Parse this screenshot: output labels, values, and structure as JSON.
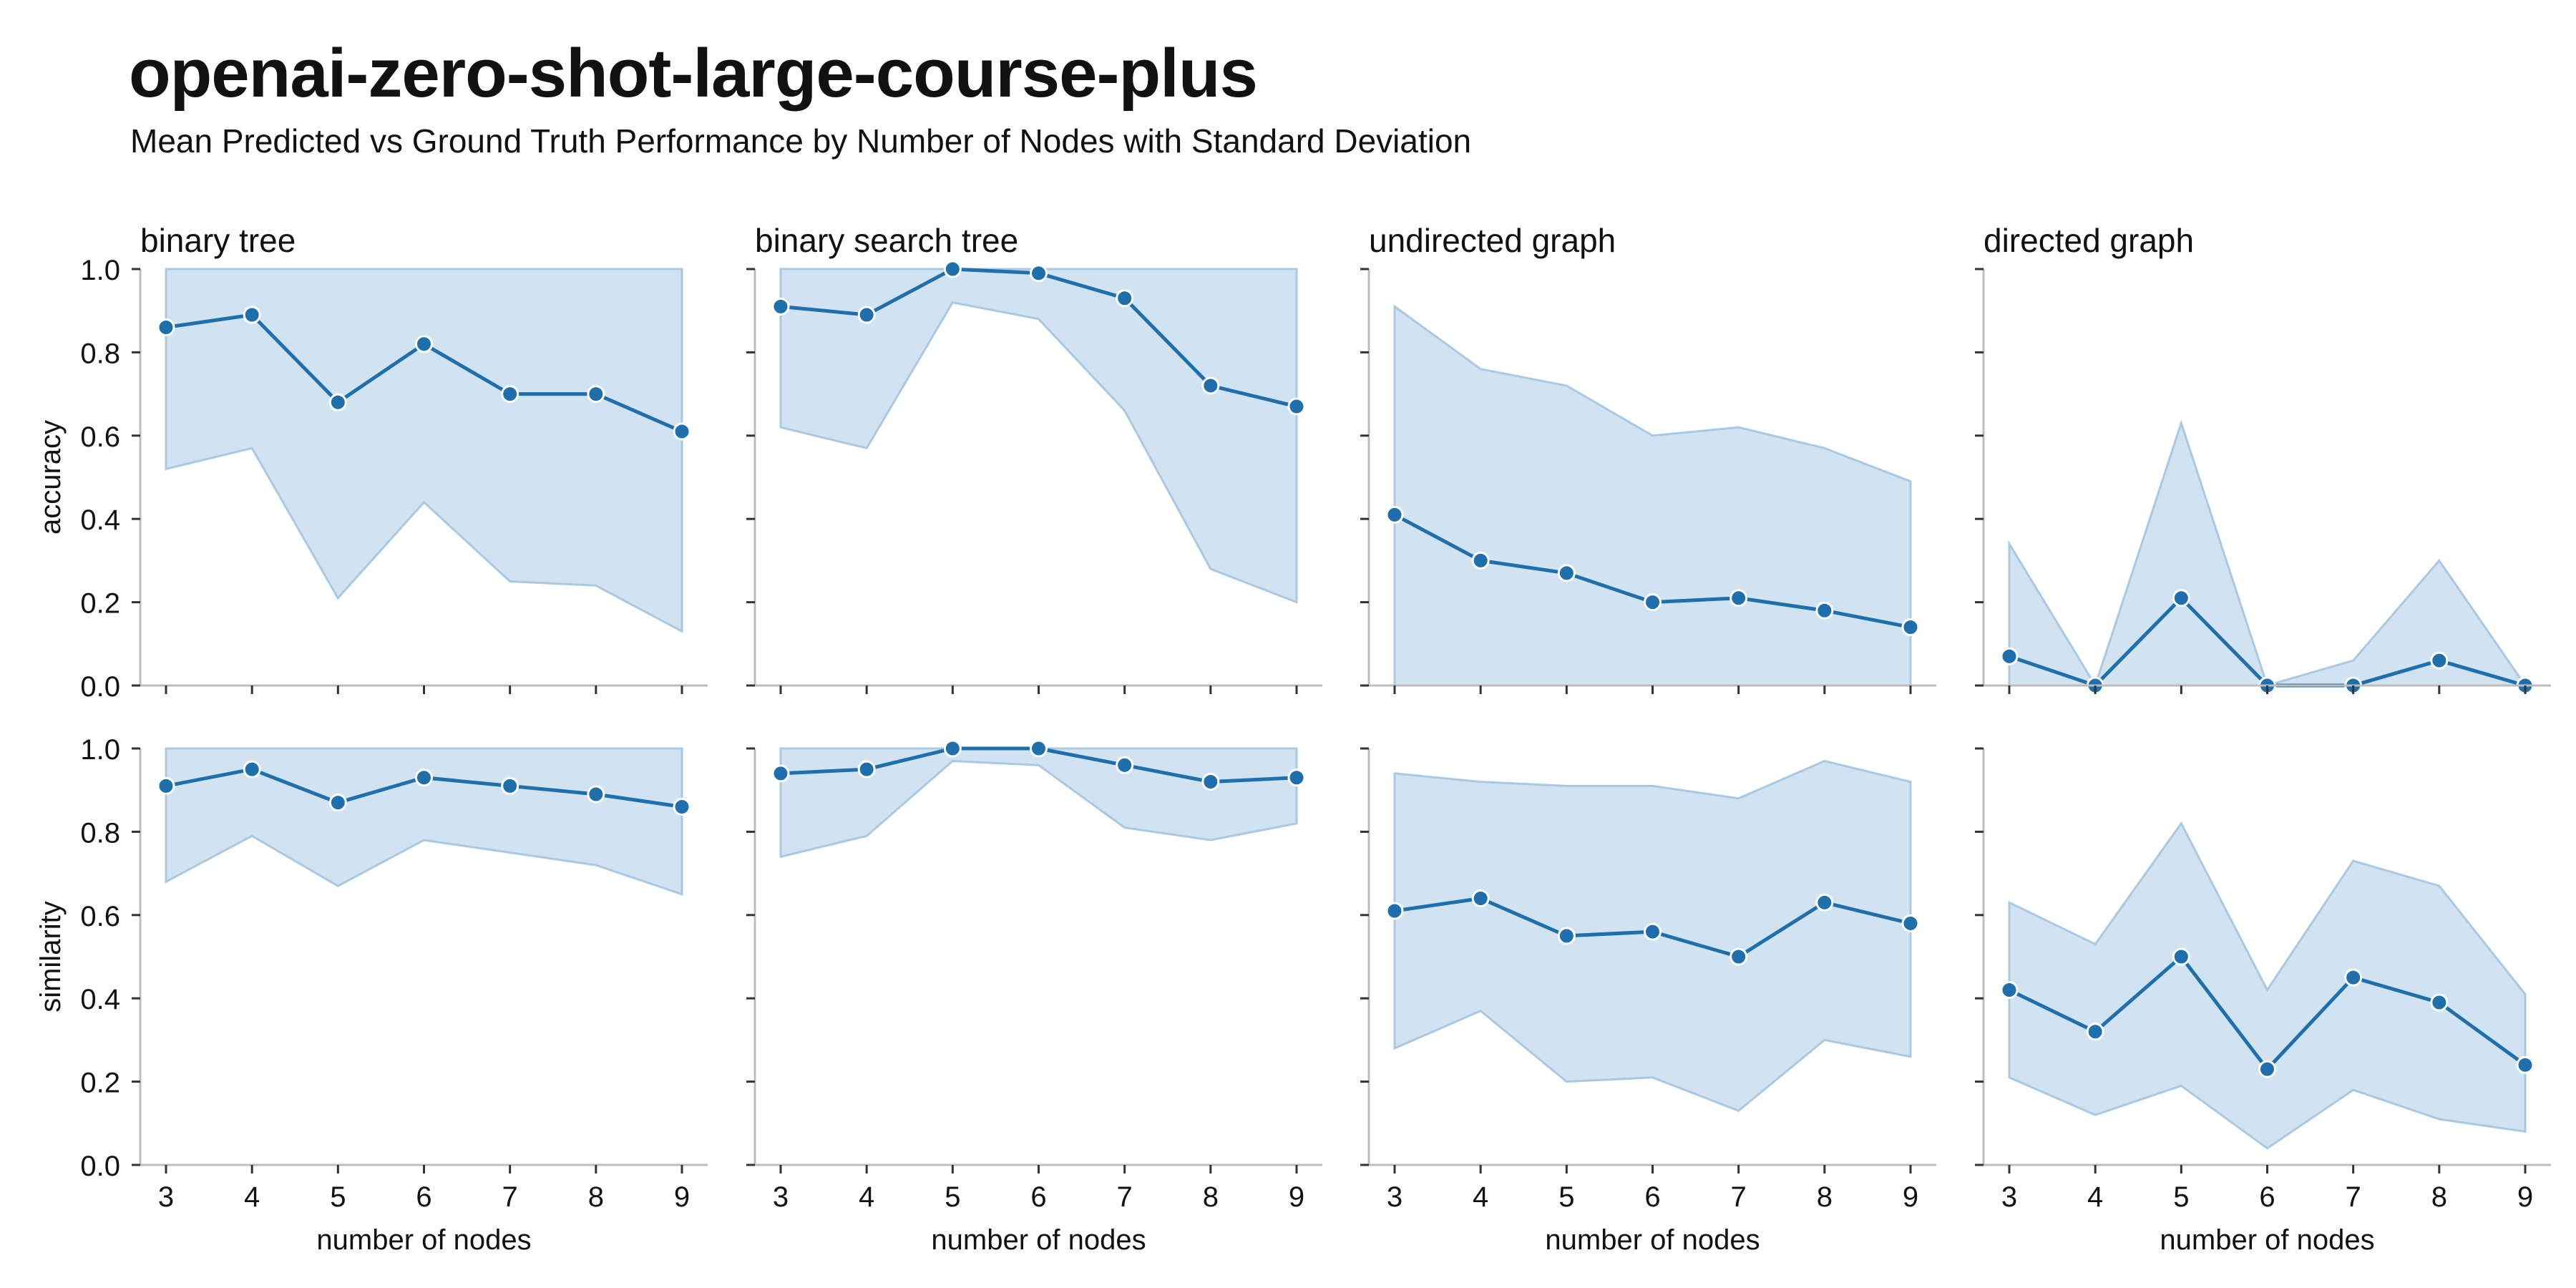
{
  "header": {
    "title": "openai-zero-shot-large-course-plus",
    "subtitle": "Mean Predicted vs Ground Truth Performance by Number of Nodes with Standard Deviation"
  },
  "chart_data": {
    "type": "line",
    "x": [
      3,
      4,
      5,
      6,
      7,
      8,
      9
    ],
    "xlabel": "number of nodes",
    "ylim": [
      0,
      1
    ],
    "yticks": [
      "0.0",
      "0.2",
      "0.4",
      "0.6",
      "0.8",
      "1.0"
    ],
    "xticks": [
      "3",
      "4",
      "5",
      "6",
      "7",
      "8",
      "9"
    ],
    "grid": false,
    "colors": {
      "line": "#1f6fad",
      "band": "#cfe1ef",
      "band_edge": "#a9c9e3"
    },
    "rows": [
      {
        "ylabel": "accuracy"
      },
      {
        "ylabel": "similarity"
      }
    ],
    "columns": [
      {
        "title": "binary tree"
      },
      {
        "title": "binary search tree"
      },
      {
        "title": "undirected graph"
      },
      {
        "title": "directed graph"
      }
    ],
    "panels": [
      {
        "row": 0,
        "col": 0,
        "mean": [
          0.86,
          0.89,
          0.68,
          0.82,
          0.7,
          0.7,
          0.61
        ],
        "lower": [
          0.52,
          0.57,
          0.21,
          0.44,
          0.25,
          0.24,
          0.13
        ],
        "upper": [
          1.0,
          1.0,
          1.0,
          1.0,
          1.0,
          1.0,
          1.0
        ]
      },
      {
        "row": 0,
        "col": 1,
        "mean": [
          0.91,
          0.89,
          1.0,
          0.99,
          0.93,
          0.72,
          0.67
        ],
        "lower": [
          0.62,
          0.57,
          0.92,
          0.88,
          0.66,
          0.28,
          0.2
        ],
        "upper": [
          1.0,
          1.0,
          1.0,
          1.0,
          1.0,
          1.0,
          1.0
        ]
      },
      {
        "row": 0,
        "col": 2,
        "mean": [
          0.41,
          0.3,
          0.27,
          0.2,
          0.21,
          0.18,
          0.14
        ],
        "lower": [
          0.0,
          0.0,
          0.0,
          0.0,
          0.0,
          0.0,
          0.0
        ],
        "upper": [
          0.91,
          0.76,
          0.72,
          0.6,
          0.62,
          0.57,
          0.49
        ]
      },
      {
        "row": 0,
        "col": 3,
        "mean": [
          0.07,
          0.0,
          0.21,
          0.0,
          0.0,
          0.06,
          0.0
        ],
        "lower": [
          0.0,
          0.0,
          0.0,
          0.0,
          0.0,
          0.0,
          0.0
        ],
        "upper": [
          0.34,
          0.0,
          0.63,
          0.0,
          0.06,
          0.3,
          0.0
        ]
      },
      {
        "row": 1,
        "col": 0,
        "mean": [
          0.91,
          0.95,
          0.87,
          0.93,
          0.91,
          0.89,
          0.86
        ],
        "lower": [
          0.68,
          0.79,
          0.67,
          0.78,
          0.75,
          0.72,
          0.65
        ],
        "upper": [
          1.0,
          1.0,
          1.0,
          1.0,
          1.0,
          1.0,
          1.0
        ]
      },
      {
        "row": 1,
        "col": 1,
        "mean": [
          0.94,
          0.95,
          1.0,
          1.0,
          0.96,
          0.92,
          0.93
        ],
        "lower": [
          0.74,
          0.79,
          0.97,
          0.96,
          0.81,
          0.78,
          0.82
        ],
        "upper": [
          1.0,
          1.0,
          1.0,
          1.0,
          1.0,
          1.0,
          1.0
        ]
      },
      {
        "row": 1,
        "col": 2,
        "mean": [
          0.61,
          0.64,
          0.55,
          0.56,
          0.5,
          0.63,
          0.58
        ],
        "lower": [
          0.28,
          0.37,
          0.2,
          0.21,
          0.13,
          0.3,
          0.26
        ],
        "upper": [
          0.94,
          0.92,
          0.91,
          0.91,
          0.88,
          0.97,
          0.92
        ]
      },
      {
        "row": 1,
        "col": 3,
        "mean": [
          0.42,
          0.32,
          0.5,
          0.23,
          0.45,
          0.39,
          0.24
        ],
        "lower": [
          0.21,
          0.12,
          0.19,
          0.04,
          0.18,
          0.11,
          0.08
        ],
        "upper": [
          0.63,
          0.53,
          0.82,
          0.42,
          0.73,
          0.67,
          0.41
        ]
      }
    ]
  }
}
